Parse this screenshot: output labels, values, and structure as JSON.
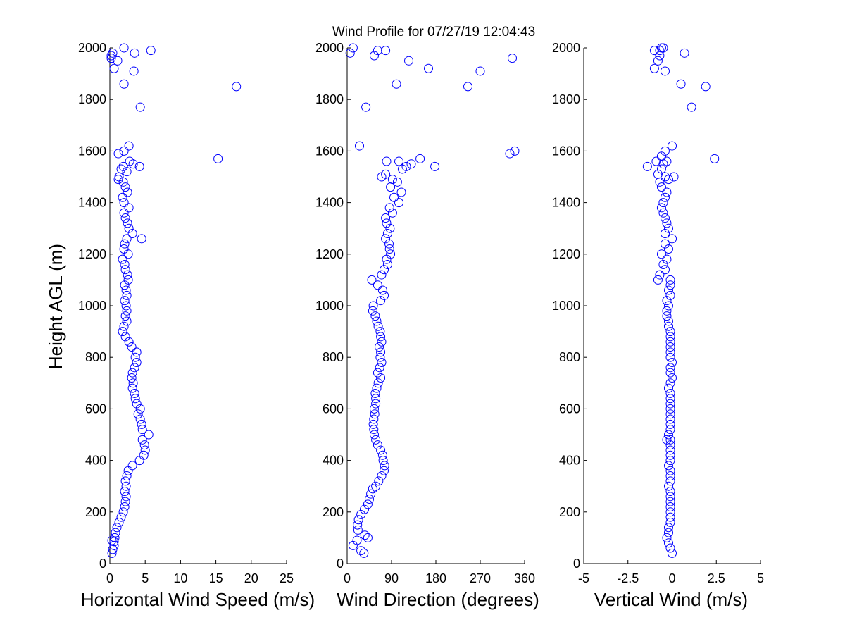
{
  "page": {
    "title": "Wind Profile for  07/27/19 12:04:43",
    "shared_ylabel": "Height AGL (m)"
  },
  "chart_data": [
    {
      "type": "scatter",
      "xlabel": "Horizontal Wind Speed (m/s)",
      "ylabel": "Height AGL (m)",
      "xlim": [
        0,
        25
      ],
      "ylim": [
        0,
        2000
      ],
      "xticks": [
        0,
        5,
        10,
        15,
        20,
        25
      ],
      "xtick_labels": [
        "0",
        "5",
        "10",
        "15",
        "20",
        "25"
      ],
      "yticks": [
        0,
        200,
        400,
        600,
        800,
        1000,
        1200,
        1400,
        1600,
        1800,
        2000
      ],
      "ytick_labels": [
        "0",
        "200",
        "400",
        "600",
        "800",
        "1000",
        "1200",
        "1400",
        "1600",
        "1800",
        "2000"
      ],
      "grid": false,
      "marker": "circle",
      "color": "#0000ff",
      "x": [
        0.3,
        0.4,
        0.6,
        0.6,
        0.3,
        0.7,
        0.8,
        1.0,
        1.3,
        1.6,
        1.9,
        2.1,
        2.2,
        2.3,
        2.1,
        2.3,
        2.2,
        2.4,
        2.6,
        3.2,
        4.2,
        4.8,
        5.0,
        4.9,
        4.6,
        5.5,
        4.6,
        4.5,
        4.3,
        4.0,
        4.3,
        3.8,
        3.6,
        3.5,
        3.2,
        3.3,
        3.1,
        3.2,
        3.5,
        3.8,
        3.6,
        3.8,
        3.1,
        2.7,
        2.2,
        1.8,
        2.0,
        2.4,
        2.2,
        2.4,
        2.3,
        2.1,
        2.4,
        2.3,
        2.1,
        2.6,
        2.5,
        2.2,
        2.1,
        1.8,
        2.6,
        2.0,
        2.1,
        2.4,
        4.5,
        3.2,
        2.7,
        2.5,
        2.2,
        2.0,
        2.7,
        2.0,
        1.8,
        2.5,
        2.2,
        1.9,
        1.2,
        1.3,
        2.4,
        1.6,
        1.9,
        3.3,
        4.2,
        2.8,
        1.2,
        2.0,
        15.3,
        2.7,
        4.3,
        17.9,
        2.0,
        3.4,
        0.6,
        1.1,
        0.2,
        3.5,
        0.4,
        0.2,
        2.0,
        5.8
      ],
      "y": [
        40,
        55,
        70,
        85,
        90,
        100,
        120,
        140,
        160,
        180,
        200,
        220,
        240,
        260,
        280,
        300,
        320,
        340,
        360,
        380,
        400,
        420,
        440,
        460,
        480,
        500,
        520,
        540,
        560,
        580,
        600,
        620,
        640,
        660,
        680,
        700,
        720,
        740,
        760,
        780,
        800,
        820,
        840,
        860,
        880,
        900,
        920,
        940,
        960,
        980,
        1000,
        1020,
        1040,
        1060,
        1080,
        1100,
        1120,
        1140,
        1160,
        1180,
        1200,
        1220,
        1240,
        1260,
        1260,
        1280,
        1300,
        1320,
        1340,
        1360,
        1380,
        1400,
        1420,
        1440,
        1460,
        1480,
        1490,
        1500,
        1520,
        1530,
        1540,
        1550,
        1540,
        1560,
        1590,
        1600,
        1570,
        1620,
        1770,
        1850,
        1860,
        1910,
        1920,
        1950,
        1960,
        1980,
        1980,
        1970,
        2000,
        1990
      ]
    },
    {
      "type": "scatter",
      "xlabel": "Wind Direction (degrees)",
      "ylabel": "",
      "xlim": [
        0,
        360
      ],
      "ylim": [
        0,
        2000
      ],
      "xticks": [
        0,
        90,
        180,
        270,
        360
      ],
      "xtick_labels": [
        "0",
        "90",
        "180",
        "270",
        "360"
      ],
      "yticks": [
        0,
        200,
        400,
        600,
        800,
        1000,
        1200,
        1400,
        1600,
        1800,
        2000
      ],
      "ytick_labels": [
        "0",
        "200",
        "400",
        "600",
        "800",
        "1000",
        "1200",
        "1400",
        "1600",
        "1800",
        "2000"
      ],
      "grid": false,
      "marker": "circle",
      "color": "#0000ff",
      "x": [
        34,
        28,
        12,
        20,
        42,
        36,
        22,
        21,
        23,
        28,
        35,
        42,
        45,
        48,
        52,
        58,
        64,
        70,
        75,
        76,
        73,
        72,
        68,
        62,
        58,
        55,
        54,
        53,
        54,
        56,
        55,
        58,
        58,
        57,
        60,
        63,
        68,
        62,
        66,
        70,
        67,
        68,
        65,
        70,
        68,
        67,
        63,
        60,
        57,
        52,
        53,
        68,
        75,
        72,
        62,
        50,
        70,
        75,
        82,
        80,
        88,
        86,
        85,
        78,
        82,
        87,
        80,
        78,
        92,
        86,
        105,
        95,
        110,
        88,
        102,
        92,
        70,
        78,
        112,
        120,
        130,
        178,
        105,
        148,
        80,
        340,
        330,
        25,
        38,
        245,
        100,
        270,
        165,
        125,
        335,
        55,
        62,
        6,
        78,
        12
      ],
      "y": [
        40,
        50,
        70,
        90,
        100,
        110,
        130,
        150,
        170,
        190,
        210,
        230,
        250,
        270,
        290,
        300,
        320,
        340,
        360,
        380,
        400,
        420,
        440,
        460,
        480,
        500,
        520,
        540,
        560,
        580,
        600,
        620,
        640,
        660,
        680,
        700,
        720,
        740,
        760,
        780,
        800,
        820,
        840,
        860,
        880,
        900,
        920,
        940,
        960,
        980,
        1000,
        1020,
        1040,
        1060,
        1080,
        1100,
        1120,
        1140,
        1160,
        1180,
        1200,
        1220,
        1240,
        1260,
        1280,
        1300,
        1320,
        1340,
        1360,
        1380,
        1400,
        1420,
        1440,
        1460,
        1480,
        1490,
        1500,
        1510,
        1530,
        1540,
        1550,
        1540,
        1560,
        1570,
        1560,
        1600,
        1590,
        1620,
        1770,
        1850,
        1860,
        1910,
        1920,
        1950,
        1960,
        1970,
        1990,
        1980,
        1990,
        2000
      ]
    },
    {
      "type": "scatter",
      "xlabel": "Vertical Wind (m/s)",
      "ylabel": "",
      "xlim": [
        -5,
        5
      ],
      "ylim": [
        0,
        2000
      ],
      "xticks": [
        -5,
        -2.5,
        0,
        2.5,
        5
      ],
      "xtick_labels": [
        "-5",
        "-2.5",
        "0",
        "2.5",
        "5"
      ],
      "yticks": [
        0,
        200,
        400,
        600,
        800,
        1000,
        1200,
        1400,
        1600,
        1800,
        2000
      ],
      "ytick_labels": [
        "0",
        "200",
        "400",
        "600",
        "800",
        "1000",
        "1200",
        "1400",
        "1600",
        "1800",
        "2000"
      ],
      "grid": false,
      "marker": "circle",
      "color": "#0000ff",
      "x": [
        0.0,
        -0.1,
        -0.2,
        -0.3,
        -0.2,
        -0.2,
        -0.1,
        -0.1,
        -0.1,
        -0.1,
        -0.1,
        -0.1,
        -0.1,
        -0.2,
        -0.1,
        -0.1,
        -0.1,
        -0.2,
        -0.1,
        -0.1,
        -0.1,
        -0.1,
        -0.1,
        -0.2,
        -0.3,
        -0.1,
        -0.1,
        -0.1,
        -0.1,
        -0.1,
        -0.1,
        -0.1,
        -0.1,
        -0.2,
        -0.1,
        0.0,
        -0.1,
        -0.1,
        0.0,
        -0.1,
        -0.1,
        -0.1,
        -0.1,
        -0.1,
        -0.1,
        -0.2,
        -0.2,
        -0.3,
        -0.3,
        -0.2,
        -0.3,
        -0.1,
        -0.2,
        -0.1,
        -0.1,
        -0.8,
        -0.7,
        -0.4,
        -0.5,
        -0.3,
        -0.6,
        -0.2,
        -0.4,
        0.0,
        -0.4,
        -0.2,
        -0.3,
        -0.4,
        -0.5,
        -0.6,
        -0.5,
        -0.4,
        -0.3,
        -0.6,
        -0.7,
        -0.2,
        -0.4,
        0.1,
        -0.8,
        -0.6,
        -1.4,
        -0.5,
        -0.3,
        -0.9,
        -0.6,
        -0.4,
        2.4,
        0.0,
        1.1,
        1.9,
        0.5,
        -0.4,
        -1.0,
        -0.8,
        0.7,
        -0.7,
        -0.7,
        -0.5,
        -1.0,
        -0.6
      ],
      "y": [
        40,
        60,
        80,
        100,
        120,
        140,
        160,
        180,
        200,
        220,
        240,
        260,
        280,
        300,
        320,
        340,
        360,
        380,
        400,
        420,
        440,
        460,
        480,
        500,
        480,
        520,
        540,
        560,
        580,
        600,
        620,
        640,
        660,
        680,
        700,
        720,
        740,
        760,
        780,
        800,
        820,
        840,
        860,
        880,
        900,
        920,
        940,
        960,
        980,
        1000,
        1020,
        1040,
        1060,
        1080,
        1100,
        1100,
        1120,
        1140,
        1160,
        1180,
        1200,
        1220,
        1240,
        1260,
        1280,
        1300,
        1320,
        1340,
        1360,
        1380,
        1400,
        1420,
        1440,
        1460,
        1480,
        1490,
        1500,
        1500,
        1510,
        1530,
        1540,
        1550,
        1560,
        1560,
        1580,
        1600,
        1570,
        1620,
        1770,
        1850,
        1860,
        1910,
        1920,
        1950,
        1980,
        1970,
        1990,
        2000,
        1990,
        2000
      ]
    }
  ]
}
